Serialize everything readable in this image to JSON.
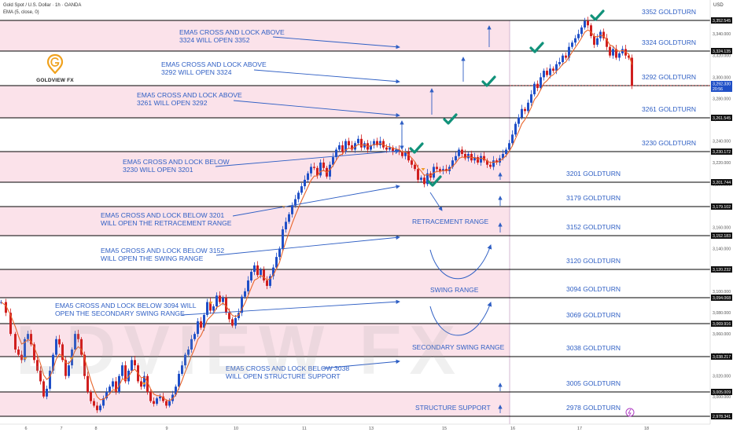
{
  "header": {
    "symbol_line": "Gold Spot / U.S. Dollar · 1h · OANDA",
    "indicator_line": "EMA (5, close, 0)",
    "currency": "USD"
  },
  "logo": {
    "name": "GOLDVIEW FX"
  },
  "watermark": "LDVIEW FX",
  "colors": {
    "pink_band": "#fbe2ea",
    "level_line": "#000000",
    "annotation_blue": "#2f5fc4",
    "check_green": "#11927a",
    "ema_line": "#e8652b",
    "candle_up": "#1f4fc7",
    "candle_down": "#d01f1f"
  },
  "chart_data": {
    "type": "candlestick",
    "timeframe": "1h",
    "x_ticks": [
      "6",
      "7",
      "8",
      "9",
      "10",
      "11",
      "13",
      "15",
      "16",
      "17",
      "18"
    ],
    "ylim": [
      2975,
      3360
    ],
    "price_ticks": [
      "3,340.000",
      "3,320.000",
      "3,300.000",
      "3,280.000",
      "3,260.000",
      "3,240.000",
      "3,220.000",
      "3,200.000",
      "3,180.000",
      "3,160.000",
      "3,140.000",
      "3,120.000",
      "3,100.000",
      "3,080.000",
      "3,060.000",
      "3,040.000",
      "3,020.000",
      "3,000.000"
    ],
    "level_price_labels": [
      {
        "price": 3352.545,
        "text": "3,352.545"
      },
      {
        "price": 3324.135,
        "text": "3,324.135"
      },
      {
        "price": 3292.311,
        "text": "3,292.311"
      },
      {
        "price": 3261.545,
        "text": "3,261.545"
      },
      {
        "price": 3230.172,
        "text": "3,230.172"
      },
      {
        "price": 3201.744,
        "text": "3,201.744"
      },
      {
        "price": 3179.102,
        "text": "3,179.102"
      },
      {
        "price": 3152.183,
        "text": "3,152.183"
      },
      {
        "price": 3120.232,
        "text": "3,120.232"
      },
      {
        "price": 3094.068,
        "text": "3,094.068"
      },
      {
        "price": 3069.916,
        "text": "3,069.916"
      },
      {
        "price": 3038.217,
        "text": "3,038.217"
      },
      {
        "price": 3005.009,
        "text": "3,005.009"
      },
      {
        "price": 2978.341,
        "text": "2,978.341"
      }
    ],
    "current_price": {
      "price": 3292.33,
      "text": "3,292.330",
      "countdown": "20:56"
    },
    "goldturn_levels": [
      {
        "price": 3352.545,
        "text": "3352 GOLDTURN"
      },
      {
        "price": 3324.135,
        "text": "3324 GOLDTURN"
      },
      {
        "price": 3292.311,
        "text": "3292 GOLDTURN"
      },
      {
        "price": 3261.545,
        "text": "3261 GOLDTURN"
      },
      {
        "price": 3230.172,
        "text": "3230 GOLDTURN"
      },
      {
        "price": 3201.744,
        "text": "3201 GOLDTURN"
      },
      {
        "price": 3179.102,
        "text": "3179 GOLDTURN"
      },
      {
        "price": 3152.183,
        "text": "3152 GOLDTURN"
      },
      {
        "price": 3120.232,
        "text": "3120 GOLDTURN"
      },
      {
        "price": 3094.068,
        "text": "3094 GOLDTURN"
      },
      {
        "price": 3069.916,
        "text": "3069 GOLDTURN"
      },
      {
        "price": 3038.217,
        "text": "3038 GOLDTURN"
      },
      {
        "price": 3005.009,
        "text": "3005 GOLDTURN"
      },
      {
        "price": 2978.341,
        "text": "2978 GOLDTURN"
      }
    ],
    "annotations": [
      {
        "lines": [
          "EMA5 CROSS AND LOCK ABOVE",
          "3324 WILL OPEN 3352"
        ]
      },
      {
        "lines": [
          "EMA5 CROSS AND LOCK ABOVE",
          "3292 WILL OPEN 3324"
        ]
      },
      {
        "lines": [
          "EMA5 CROSS AND LOCK ABOVE",
          "3261 WILL OPEN 3292"
        ]
      },
      {
        "lines": [
          "EMA5 CROSS AND LOCK BELOW",
          "3230 WILL OPEN 3201"
        ]
      },
      {
        "lines": [
          "EMA5 CROSS AND LOCK BELOW 3201",
          "WILL OPEN THE RETRACEMENT RANGE"
        ]
      },
      {
        "lines": [
          "EMA5 CROSS AND LOCK BELOW 3152",
          "WILL OPEN THE SWING RANGE"
        ]
      },
      {
        "lines": [
          "EMA5 CROSS AND LOCK BELOW 3094 WILL",
          "OPEN THE SECONDARY SWING RANGE"
        ]
      },
      {
        "lines": [
          "EMA5 CROSS AND LOCK BELOW 3038",
          "WILL OPEN STRUCTURE SUPPORT"
        ]
      }
    ],
    "range_labels": [
      "RETRACEMENT RANGE",
      "SWING RANGE",
      "SECONDARY SWING RANGE",
      "STRUCTURE SUPPORT"
    ],
    "price_path": [
      [
        0,
        3090
      ],
      [
        6,
        3080
      ],
      [
        12,
        3060
      ],
      [
        18,
        3045
      ],
      [
        22,
        3040
      ],
      [
        26,
        3035
      ],
      [
        30,
        3055
      ],
      [
        34,
        3060
      ],
      [
        38,
        3050
      ],
      [
        42,
        3035
      ],
      [
        46,
        3025
      ],
      [
        50,
        3015
      ],
      [
        54,
        3000
      ],
      [
        58,
        3008
      ],
      [
        62,
        3025
      ],
      [
        66,
        3040
      ],
      [
        70,
        3055
      ],
      [
        74,
        3050
      ],
      [
        78,
        3035
      ],
      [
        82,
        3020
      ],
      [
        86,
        3030
      ],
      [
        90,
        3045
      ],
      [
        94,
        3060
      ],
      [
        98,
        3055
      ],
      [
        102,
        3040
      ],
      [
        106,
        3020
      ],
      [
        110,
        3005
      ],
      [
        114,
        2995
      ],
      [
        118,
        2990
      ],
      [
        122,
        2985
      ],
      [
        126,
        2990
      ],
      [
        130,
        2998
      ],
      [
        134,
        3005
      ],
      [
        138,
        3010
      ],
      [
        142,
        3015
      ],
      [
        146,
        3005
      ],
      [
        150,
        3020
      ],
      [
        154,
        3030
      ],
      [
        158,
        3015
      ],
      [
        162,
        3025
      ],
      [
        166,
        3035
      ],
      [
        170,
        3030
      ],
      [
        174,
        3015
      ],
      [
        178,
        3010
      ],
      [
        182,
        3020
      ],
      [
        186,
        3005
      ],
      [
        190,
        2995
      ],
      [
        194,
        2992
      ],
      [
        198,
        2998
      ],
      [
        202,
        3000
      ],
      [
        206,
        2995
      ],
      [
        210,
        2990
      ],
      [
        214,
        2995
      ],
      [
        218,
        3002
      ],
      [
        222,
        3010
      ],
      [
        226,
        3022
      ],
      [
        230,
        3030
      ],
      [
        234,
        3040
      ],
      [
        238,
        3045
      ],
      [
        242,
        3055
      ],
      [
        246,
        3060
      ],
      [
        250,
        3072
      ],
      [
        254,
        3066
      ],
      [
        258,
        3078
      ],
      [
        262,
        3090
      ],
      [
        266,
        3082
      ],
      [
        270,
        3086
      ],
      [
        274,
        3096
      ],
      [
        278,
        3090
      ],
      [
        282,
        3094
      ],
      [
        286,
        3080
      ],
      [
        290,
        3074
      ],
      [
        294,
        3068
      ],
      [
        298,
        3075
      ],
      [
        302,
        3080
      ],
      [
        306,
        3095
      ],
      [
        310,
        3100
      ],
      [
        314,
        3110
      ],
      [
        318,
        3118
      ],
      [
        322,
        3124
      ],
      [
        326,
        3115
      ],
      [
        330,
        3120
      ],
      [
        334,
        3110
      ],
      [
        338,
        3105
      ],
      [
        342,
        3114
      ],
      [
        346,
        3122
      ],
      [
        350,
        3132
      ],
      [
        354,
        3140
      ],
      [
        358,
        3158
      ],
      [
        362,
        3165
      ],
      [
        366,
        3172
      ],
      [
        370,
        3180
      ],
      [
        374,
        3186
      ],
      [
        378,
        3192
      ],
      [
        382,
        3198
      ],
      [
        386,
        3204
      ],
      [
        390,
        3210
      ],
      [
        394,
        3216
      ],
      [
        398,
        3215
      ],
      [
        402,
        3208
      ],
      [
        406,
        3220
      ],
      [
        410,
        3215
      ],
      [
        414,
        3207
      ],
      [
        418,
        3218
      ],
      [
        422,
        3225
      ],
      [
        426,
        3232
      ],
      [
        430,
        3236
      ],
      [
        434,
        3230
      ],
      [
        438,
        3240
      ],
      [
        442,
        3236
      ],
      [
        446,
        3232
      ],
      [
        450,
        3238
      ],
      [
        454,
        3242
      ],
      [
        458,
        3234
      ],
      [
        462,
        3238
      ],
      [
        466,
        3232
      ],
      [
        470,
        3236
      ],
      [
        474,
        3240
      ],
      [
        478,
        3236
      ],
      [
        482,
        3240
      ],
      [
        486,
        3234
      ],
      [
        490,
        3232
      ],
      [
        494,
        3234
      ],
      [
        498,
        3230
      ],
      [
        502,
        3232
      ],
      [
        506,
        3230
      ],
      [
        510,
        3226
      ],
      [
        514,
        3230
      ],
      [
        518,
        3222
      ],
      [
        522,
        3218
      ],
      [
        526,
        3214
      ],
      [
        530,
        3204
      ],
      [
        534,
        3206
      ],
      [
        538,
        3200
      ],
      [
        542,
        3210
      ],
      [
        546,
        3206
      ],
      [
        550,
        3216
      ],
      [
        554,
        3214
      ],
      [
        558,
        3212
      ],
      [
        562,
        3214
      ],
      [
        566,
        3212
      ],
      [
        570,
        3216
      ],
      [
        574,
        3222
      ],
      [
        578,
        3226
      ],
      [
        582,
        3232
      ],
      [
        586,
        3228
      ],
      [
        590,
        3224
      ],
      [
        594,
        3228
      ],
      [
        598,
        3222
      ],
      [
        602,
        3225
      ],
      [
        606,
        3220
      ],
      [
        610,
        3226
      ],
      [
        614,
        3222
      ],
      [
        618,
        3218
      ],
      [
        622,
        3216
      ],
      [
        626,
        3222
      ],
      [
        630,
        3220
      ],
      [
        634,
        3224
      ],
      [
        638,
        3228
      ],
      [
        642,
        3232
      ],
      [
        646,
        3238
      ],
      [
        650,
        3246
      ],
      [
        654,
        3256
      ],
      [
        658,
        3262
      ],
      [
        662,
        3270
      ],
      [
        666,
        3268
      ],
      [
        670,
        3276
      ],
      [
        674,
        3284
      ],
      [
        678,
        3294
      ],
      [
        682,
        3290
      ],
      [
        686,
        3300
      ],
      [
        690,
        3306
      ],
      [
        694,
        3302
      ],
      [
        698,
        3308
      ],
      [
        702,
        3306
      ],
      [
        706,
        3312
      ],
      [
        710,
        3314
      ],
      [
        714,
        3320
      ],
      [
        718,
        3318
      ],
      [
        722,
        3328
      ],
      [
        726,
        3332
      ],
      [
        730,
        3336
      ],
      [
        734,
        3340
      ],
      [
        738,
        3346
      ],
      [
        742,
        3352
      ],
      [
        746,
        3348
      ],
      [
        750,
        3338
      ],
      [
        754,
        3330
      ],
      [
        758,
        3336
      ],
      [
        762,
        3342
      ],
      [
        766,
        3336
      ],
      [
        770,
        3328
      ],
      [
        774,
        3320
      ],
      [
        778,
        3326
      ],
      [
        782,
        3318
      ],
      [
        786,
        3322
      ],
      [
        790,
        3326
      ],
      [
        794,
        3320
      ],
      [
        798,
        3318
      ],
      [
        802,
        3292
      ]
    ]
  }
}
